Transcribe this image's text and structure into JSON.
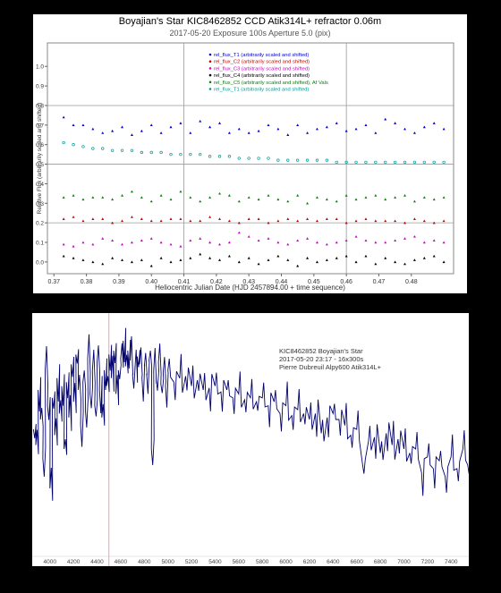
{
  "chart_data": [
    {
      "type": "scatter",
      "title": "Boyajian's Star KIC8462852      CCD Atik314L+  refractor  0.06m",
      "subtitle": "2017-05-20  Exposure 100s   Aperture 5.0 (pix)",
      "xlabel": "Heliocentric Julian Date (HJD 2457894.00 + time sequence)",
      "ylabel": "Relative Flux (arbitrarily scaled and shifted)",
      "xlim": [
        0.368,
        0.493
      ],
      "ylim": [
        -0.06,
        1.12
      ],
      "xticks": [
        "0.37",
        "0.38",
        "0.39",
        "0.40",
        "0.41",
        "0.42",
        "0.43",
        "0.44",
        "0.45",
        "0.46",
        "0.47",
        "0.48"
      ],
      "yticks": [
        "0.0",
        "0.1",
        "0.2",
        "0.3",
        "0.4",
        "0.5",
        "0.6",
        "0.7",
        "0.8",
        "0.9",
        "1.0"
      ],
      "legend_position": "top-center",
      "grid": true,
      "x": [
        0.373,
        0.376,
        0.379,
        0.382,
        0.385,
        0.388,
        0.391,
        0.394,
        0.397,
        0.4,
        0.403,
        0.406,
        0.409,
        0.412,
        0.415,
        0.418,
        0.421,
        0.424,
        0.427,
        0.43,
        0.433,
        0.436,
        0.439,
        0.442,
        0.445,
        0.448,
        0.451,
        0.454,
        0.457,
        0.46,
        0.463,
        0.466,
        0.469,
        0.472,
        0.475,
        0.478,
        0.481,
        0.484,
        0.487,
        0.49
      ],
      "series": [
        {
          "name": "rel_flux_T1 (arbitrarily scaled and shifted)",
          "color": "#0000cc",
          "values": [
            0.74,
            0.7,
            0.7,
            0.68,
            0.66,
            0.67,
            0.69,
            0.65,
            0.67,
            0.7,
            0.66,
            0.69,
            0.71,
            0.66,
            0.72,
            0.69,
            0.71,
            0.66,
            0.68,
            0.66,
            0.67,
            0.7,
            0.68,
            0.65,
            0.7,
            0.66,
            0.68,
            0.69,
            0.71,
            0.67,
            0.68,
            0.7,
            0.66,
            0.73,
            0.71,
            0.68,
            0.66,
            0.69,
            0.71,
            0.68
          ]
        },
        {
          "name": "rel_flux_C2 (arbitrarily scaled and shifted)",
          "color": "#cc0000",
          "values": [
            0.22,
            0.23,
            0.21,
            0.22,
            0.22,
            0.2,
            0.21,
            0.23,
            0.22,
            0.21,
            0.21,
            0.22,
            0.22,
            0.21,
            0.21,
            0.23,
            0.22,
            0.21,
            0.2,
            0.22,
            0.22,
            0.2,
            0.21,
            0.22,
            0.21,
            0.22,
            0.21,
            0.22,
            0.22,
            0.2,
            0.21,
            0.22,
            0.21,
            0.21,
            0.21,
            0.2,
            0.22,
            0.21,
            0.2,
            0.21
          ]
        },
        {
          "name": "rel_flux_C3 (arbitrarily scaled and shifted)",
          "color": "#cc00cc",
          "values": [
            0.09,
            0.08,
            0.1,
            0.09,
            0.12,
            0.11,
            0.09,
            0.1,
            0.11,
            0.12,
            0.1,
            0.09,
            0.08,
            0.11,
            0.12,
            0.1,
            0.09,
            0.1,
            0.15,
            0.13,
            0.11,
            0.12,
            0.1,
            0.09,
            0.11,
            0.12,
            0.1,
            0.09,
            0.1,
            0.11,
            0.13,
            0.11,
            0.1,
            0.1,
            0.11,
            0.12,
            0.13,
            0.1,
            0.11,
            0.1
          ]
        },
        {
          "name": "rel_flux_C4 (arbitrarily scaled and shifted)",
          "color": "#000000",
          "values": [
            0.03,
            0.02,
            0.01,
            0.0,
            -0.01,
            0.02,
            0.01,
            0.0,
            0.01,
            -0.02,
            0.02,
            0.0,
            0.01,
            0.02,
            0.04,
            0.02,
            0.01,
            0.03,
            0.0,
            0.02,
            -0.01,
            0.01,
            0.03,
            0.01,
            -0.02,
            0.02,
            0.0,
            0.01,
            0.02,
            0.03,
            0.0,
            0.03,
            -0.01,
            0.02,
            0.0,
            -0.01,
            0.01,
            0.02,
            0.03,
            0.0
          ]
        },
        {
          "name": "rel_flux_C5 (arbitrarily scaled and shifted), Af Vals",
          "color": "#008800",
          "values": [
            0.33,
            0.34,
            0.32,
            0.33,
            0.33,
            0.32,
            0.34,
            0.36,
            0.33,
            0.31,
            0.34,
            0.32,
            0.36,
            0.33,
            0.31,
            0.33,
            0.35,
            0.34,
            0.31,
            0.33,
            0.32,
            0.34,
            0.32,
            0.31,
            0.34,
            0.3,
            0.33,
            0.32,
            0.31,
            0.34,
            0.32,
            0.33,
            0.34,
            0.32,
            0.33,
            0.34,
            0.31,
            0.33,
            0.32,
            0.33
          ]
        },
        {
          "name": "rel_flux_T1 (arbitrarily scaled and shifted)",
          "color": "#009999",
          "values": [
            0.61,
            0.6,
            0.59,
            0.58,
            0.58,
            0.57,
            0.57,
            0.57,
            0.56,
            0.56,
            0.56,
            0.55,
            0.55,
            0.55,
            0.55,
            0.54,
            0.54,
            0.54,
            0.53,
            0.53,
            0.53,
            0.53,
            0.52,
            0.52,
            0.52,
            0.52,
            0.52,
            0.52,
            0.51,
            0.51,
            0.51,
            0.51,
            0.51,
            0.51,
            0.51,
            0.51,
            0.51,
            0.51,
            0.51,
            0.51
          ]
        }
      ]
    },
    {
      "type": "line",
      "title": "KIC8462852   Boyajian's Star",
      "subtitle": "2017-05-20 23:17 - 16x300s",
      "annotation": "Pierre Dubreuil Alpy600 Atik314L+",
      "xlim": [
        3850,
        7550
      ],
      "ylim": [
        0,
        1.0
      ],
      "xticks": [
        "4000",
        "4200",
        "4400",
        "4600",
        "4800",
        "5000",
        "5200",
        "5400",
        "5600",
        "5800",
        "6000",
        "6200",
        "6400",
        "6600",
        "6800",
        "7000",
        "7200",
        "7400"
      ],
      "marker_line_x": 4500,
      "series": [
        {
          "color": "#00006b",
          "x": [
            3860,
            3880,
            3900,
            3920,
            3940,
            3960,
            3980,
            4000,
            4020,
            4040,
            4060,
            4080,
            4100,
            4120,
            4140,
            4160,
            4180,
            4200,
            4220,
            4240,
            4260,
            4280,
            4300,
            4320,
            4340,
            4360,
            4380,
            4400,
            4420,
            4440,
            4460,
            4480,
            4500,
            4520,
            4540,
            4560,
            4580,
            4600,
            4620,
            4640,
            4660,
            4680,
            4700,
            4720,
            4740,
            4760,
            4780,
            4800,
            4820,
            4840,
            4860,
            4880,
            4900,
            4920,
            4940,
            4960,
            4980,
            5000,
            5050,
            5100,
            5150,
            5200,
            5250,
            5300,
            5350,
            5400,
            5450,
            5500,
            5550,
            5600,
            5650,
            5700,
            5750,
            5800,
            5850,
            5900,
            5950,
            6000,
            6050,
            6100,
            6150,
            6200,
            6250,
            6300,
            6350,
            6400,
            6450,
            6500,
            6550,
            6600,
            6650,
            6700,
            6750,
            6800,
            6850,
            6900,
            6950,
            7000,
            7050,
            7100,
            7150,
            7200,
            7250,
            7300,
            7350,
            7400,
            7450,
            7500,
            7540
          ],
          "values": [
            0.5,
            0.42,
            0.7,
            0.55,
            0.35,
            0.8,
            0.62,
            0.2,
            0.66,
            0.47,
            0.76,
            0.58,
            0.72,
            0.4,
            0.74,
            0.56,
            0.83,
            0.64,
            0.88,
            0.7,
            0.52,
            0.74,
            0.6,
            0.86,
            0.68,
            0.8,
            0.62,
            0.84,
            0.7,
            0.56,
            0.8,
            0.72,
            0.88,
            0.76,
            0.9,
            0.68,
            0.8,
            0.86,
            0.95,
            0.82,
            0.9,
            0.85,
            0.78,
            0.8,
            0.87,
            0.83,
            0.76,
            0.82,
            0.78,
            0.85,
            0.4,
            0.8,
            0.76,
            0.84,
            0.73,
            0.79,
            0.72,
            0.8,
            0.74,
            0.76,
            0.77,
            0.72,
            0.75,
            0.7,
            0.71,
            0.72,
            0.69,
            0.7,
            0.66,
            0.68,
            0.65,
            0.66,
            0.64,
            0.66,
            0.62,
            0.64,
            0.58,
            0.62,
            0.57,
            0.6,
            0.58,
            0.55,
            0.58,
            0.48,
            0.56,
            0.58,
            0.55,
            0.52,
            0.47,
            0.5,
            0.32,
            0.44,
            0.46,
            0.38,
            0.48,
            0.42,
            0.45,
            0.4,
            0.38,
            0.4,
            0.28,
            0.36,
            0.3,
            0.34,
            0.26,
            0.36,
            0.3,
            0.4,
            0.32
          ]
        }
      ]
    }
  ]
}
